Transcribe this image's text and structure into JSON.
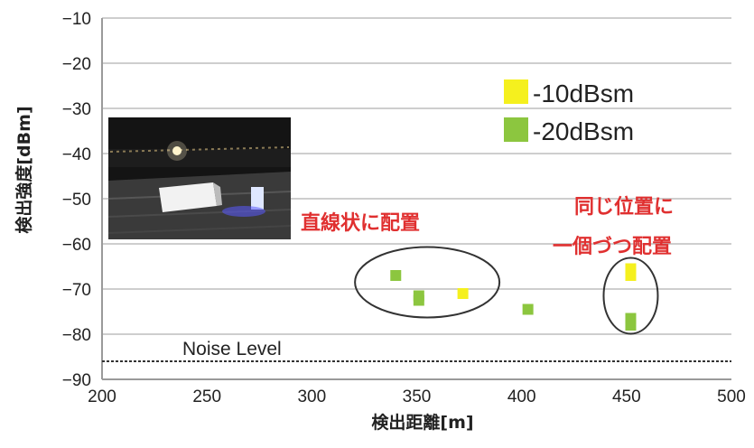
{
  "chart_data": {
    "type": "scatter",
    "xlabel": "検出距離[m]",
    "ylabel": "検出強度[dBm]",
    "xlim": [
      200,
      500
    ],
    "ylim": [
      -90,
      -10
    ],
    "x_ticks": [
      200,
      250,
      300,
      350,
      400,
      450,
      500
    ],
    "y_ticks": [
      -10,
      -20,
      -30,
      -40,
      -50,
      -60,
      -70,
      -80,
      -90
    ],
    "grid": "horizontal",
    "legend_position": "top-right",
    "series": [
      {
        "name": "-10dBsm",
        "color": "#f5f01e",
        "points": [
          [
            372,
            -71
          ],
          [
            452,
            -65.5
          ],
          [
            452,
            -67
          ]
        ]
      },
      {
        "name": "-20dBsm",
        "color": "#8cc63f",
        "points": [
          [
            340,
            -67
          ],
          [
            351,
            -71.5
          ],
          [
            351,
            -72.5
          ],
          [
            403,
            -74.5
          ],
          [
            452,
            -76.5
          ],
          [
            452,
            -78
          ]
        ]
      }
    ],
    "reference_line": {
      "y": -86,
      "label": "Noise Level"
    },
    "annotations": [
      {
        "line1": "直線状に配置",
        "ellipse_center": [
          355,
          -68.5
        ]
      },
      {
        "line1": "同じ位置に",
        "line2": "一個づつ配置",
        "ellipse_center": [
          452,
          -71.5
        ]
      }
    ],
    "inset_photo": {
      "icon": "night-field-photo"
    }
  }
}
